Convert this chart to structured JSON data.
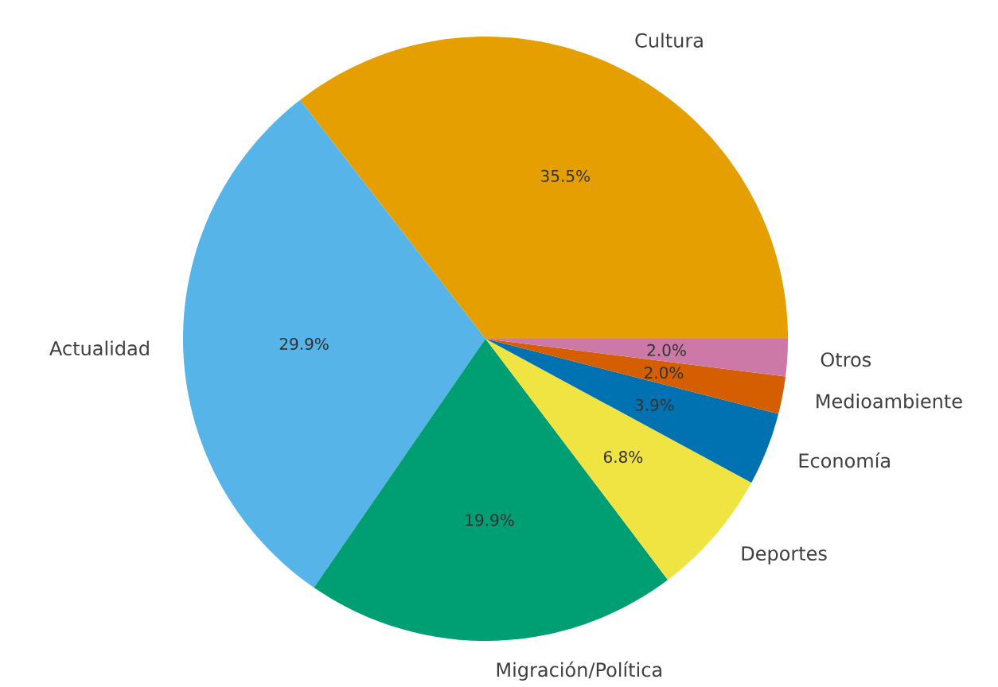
{
  "chart_data": {
    "type": "pie",
    "categories": [
      "Cultura",
      "Actualidad",
      "Migración/Política",
      "Deportes",
      "Economía",
      "Medioambiente",
      "Otros"
    ],
    "values": [
      35.5,
      29.9,
      19.9,
      6.8,
      3.9,
      2.0,
      2.0
    ],
    "value_labels": [
      "35.5%",
      "29.9%",
      "19.9%",
      "6.8%",
      "3.9%",
      "2.0%",
      "2.0%"
    ],
    "colors": [
      "#e69f00",
      "#56b4e9",
      "#009e73",
      "#f0e442",
      "#0072b2",
      "#d55e00",
      "#cc79a7"
    ]
  }
}
